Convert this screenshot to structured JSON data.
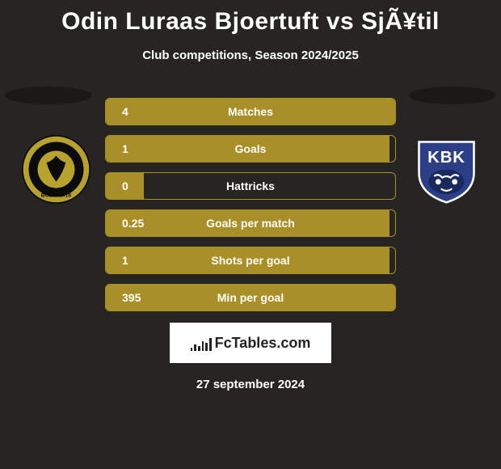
{
  "title": "Odin Luraas Bjoertuft vs SjÃ¥til",
  "subtitle": "Club competitions, Season 2024/2025",
  "date": "27 september 2024",
  "brand": "FcTables.com",
  "colors": {
    "background": "#262522",
    "bar_fill": "#a98f27",
    "bar_border": "#a98f27",
    "text": "#ffffff",
    "shadow": "#1a1917"
  },
  "stats": [
    {
      "value": "4",
      "label": "Matches",
      "fill_pct": 100
    },
    {
      "value": "1",
      "label": "Goals",
      "fill_pct": 98
    },
    {
      "value": "0",
      "label": "Hattricks",
      "fill_pct": 13
    },
    {
      "value": "0.25",
      "label": "Goals per match",
      "fill_pct": 98
    },
    {
      "value": "1",
      "label": "Shots per goal",
      "fill_pct": 98
    },
    {
      "value": "395",
      "label": "Min per goal",
      "fill_pct": 100
    }
  ],
  "badges": {
    "left": {
      "name": "bodo-glimt-badge",
      "ring_outer": "#b8a22e",
      "ring_outer_border": "#0b0b0b",
      "ring_inner": "#0b0b0b",
      "center": "#b8a22e",
      "text": "GLIMT",
      "text_bottom": "BODØ 1916"
    },
    "right": {
      "name": "kristiansund-badge",
      "bg": "#2b3e86",
      "accent": "#ffffff",
      "text": "KBK"
    }
  },
  "brand_bars": [
    4,
    8,
    6,
    12,
    10,
    16
  ]
}
